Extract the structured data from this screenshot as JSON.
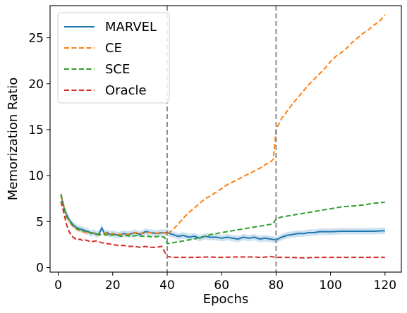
{
  "chart_data": {
    "type": "line",
    "xlabel": "Epochs",
    "ylabel": "Memorization Ratio",
    "xlim": [
      -3,
      126
    ],
    "ylim": [
      -0.5,
      28.5
    ],
    "xticks": [
      0,
      20,
      40,
      60,
      80,
      100,
      120
    ],
    "yticks": [
      0,
      5,
      10,
      15,
      20,
      25
    ],
    "grid": false,
    "legend_position": "top-left",
    "vlines": [
      40,
      80
    ],
    "series": [
      {
        "name": "MARVEL",
        "color": "#1f77b4",
        "style": "solid",
        "x": [
          1,
          2,
          3,
          4,
          5,
          6,
          7,
          8,
          9,
          10,
          11,
          12,
          13,
          14,
          15,
          16,
          17,
          18,
          19,
          20,
          22,
          24,
          26,
          28,
          30,
          32,
          34,
          36,
          38,
          40,
          42,
          44,
          46,
          48,
          50,
          52,
          54,
          56,
          58,
          60,
          62,
          64,
          66,
          68,
          70,
          72,
          74,
          76,
          78,
          80,
          82,
          84,
          86,
          88,
          90,
          92,
          94,
          96,
          98,
          100,
          104,
          108,
          112,
          116,
          120
        ],
        "y": [
          8.0,
          6.6,
          5.8,
          5.2,
          4.8,
          4.5,
          4.3,
          4.2,
          4.1,
          4.0,
          3.9,
          3.7,
          3.8,
          3.6,
          3.7,
          4.3,
          3.7,
          3.8,
          3.6,
          3.7,
          3.5,
          3.7,
          3.6,
          3.8,
          3.6,
          3.9,
          3.8,
          3.7,
          3.8,
          3.8,
          3.6,
          3.4,
          3.5,
          3.3,
          3.4,
          3.2,
          3.4,
          3.3,
          3.3,
          3.2,
          3.3,
          3.2,
          3.1,
          3.3,
          3.2,
          3.3,
          3.1,
          3.2,
          3.1,
          3.0,
          3.3,
          3.5,
          3.6,
          3.7,
          3.7,
          3.8,
          3.8,
          3.9,
          3.9,
          3.9,
          3.95,
          3.95,
          3.95,
          3.95,
          4.0
        ]
      },
      {
        "name": "CE",
        "color": "#ff7f0e",
        "style": "dashed",
        "x": [
          1,
          3,
          5,
          7,
          9,
          11,
          13,
          15,
          17,
          19,
          21,
          23,
          25,
          27,
          29,
          31,
          33,
          35,
          37,
          39,
          40,
          42,
          44,
          46,
          48,
          50,
          52,
          54,
          56,
          58,
          60,
          62,
          64,
          66,
          68,
          70,
          72,
          74,
          76,
          78,
          79,
          80,
          82,
          84,
          86,
          88,
          90,
          92,
          94,
          96,
          98,
          100,
          102,
          104,
          106,
          108,
          110,
          112,
          114,
          116,
          118,
          120
        ],
        "y": [
          7.8,
          5.6,
          4.6,
          4.1,
          3.9,
          3.7,
          3.8,
          3.5,
          3.8,
          3.6,
          3.7,
          3.6,
          3.6,
          3.7,
          3.8,
          3.7,
          3.8,
          3.8,
          3.7,
          3.8,
          3.6,
          4.1,
          4.7,
          5.4,
          6.0,
          6.5,
          7.0,
          7.5,
          7.8,
          8.2,
          8.6,
          9.0,
          9.3,
          9.6,
          9.9,
          10.2,
          10.5,
          10.8,
          11.2,
          11.5,
          11.8,
          15.0,
          16.2,
          17.0,
          17.8,
          18.5,
          19.2,
          19.9,
          20.5,
          21.1,
          21.7,
          22.4,
          23.0,
          23.4,
          23.9,
          24.5,
          25.0,
          25.5,
          25.9,
          26.4,
          26.8,
          27.5
        ]
      },
      {
        "name": "SCE",
        "color": "#2ca02c",
        "style": "dashed",
        "x": [
          1,
          3,
          5,
          7,
          9,
          11,
          13,
          15,
          17,
          19,
          21,
          23,
          25,
          27,
          29,
          31,
          33,
          35,
          37,
          39,
          40,
          42,
          44,
          46,
          48,
          50,
          52,
          54,
          56,
          58,
          60,
          62,
          64,
          66,
          68,
          70,
          72,
          74,
          76,
          78,
          79,
          80,
          82,
          84,
          86,
          88,
          90,
          92,
          94,
          96,
          98,
          100,
          104,
          108,
          112,
          116,
          120
        ],
        "y": [
          8.0,
          5.5,
          4.7,
          4.2,
          4.0,
          3.9,
          3.7,
          3.6,
          3.6,
          3.5,
          3.6,
          3.4,
          3.5,
          3.4,
          3.5,
          3.4,
          3.4,
          3.3,
          3.4,
          3.3,
          2.6,
          2.7,
          2.8,
          2.9,
          3.0,
          3.1,
          3.3,
          3.4,
          3.6,
          3.7,
          3.8,
          3.9,
          4.0,
          4.1,
          4.2,
          4.3,
          4.4,
          4.5,
          4.6,
          4.7,
          4.8,
          5.3,
          5.5,
          5.6,
          5.7,
          5.8,
          5.9,
          6.0,
          6.1,
          6.2,
          6.3,
          6.4,
          6.6,
          6.7,
          6.8,
          7.0,
          7.1
        ]
      },
      {
        "name": "Oracle",
        "color": "#d62728",
        "style": "dashed",
        "x": [
          1,
          2,
          3,
          4,
          5,
          6,
          7,
          8,
          9,
          10,
          12,
          14,
          16,
          18,
          20,
          22,
          24,
          26,
          28,
          30,
          32,
          34,
          36,
          38,
          40,
          42,
          44,
          46,
          48,
          50,
          55,
          60,
          65,
          70,
          75,
          78,
          80,
          85,
          90,
          95,
          100,
          105,
          110,
          115,
          120
        ],
        "y": [
          7.2,
          6.0,
          4.7,
          3.9,
          3.4,
          3.2,
          3.0,
          3.1,
          2.9,
          3.0,
          2.8,
          2.9,
          2.7,
          2.6,
          2.5,
          2.4,
          2.4,
          2.3,
          2.3,
          2.2,
          2.3,
          2.2,
          2.2,
          2.3,
          1.2,
          1.1,
          1.1,
          1.1,
          1.1,
          1.1,
          1.15,
          1.1,
          1.15,
          1.15,
          1.1,
          1.2,
          1.1,
          1.1,
          1.05,
          1.1,
          1.1,
          1.1,
          1.1,
          1.1,
          1.1
        ]
      }
    ]
  }
}
